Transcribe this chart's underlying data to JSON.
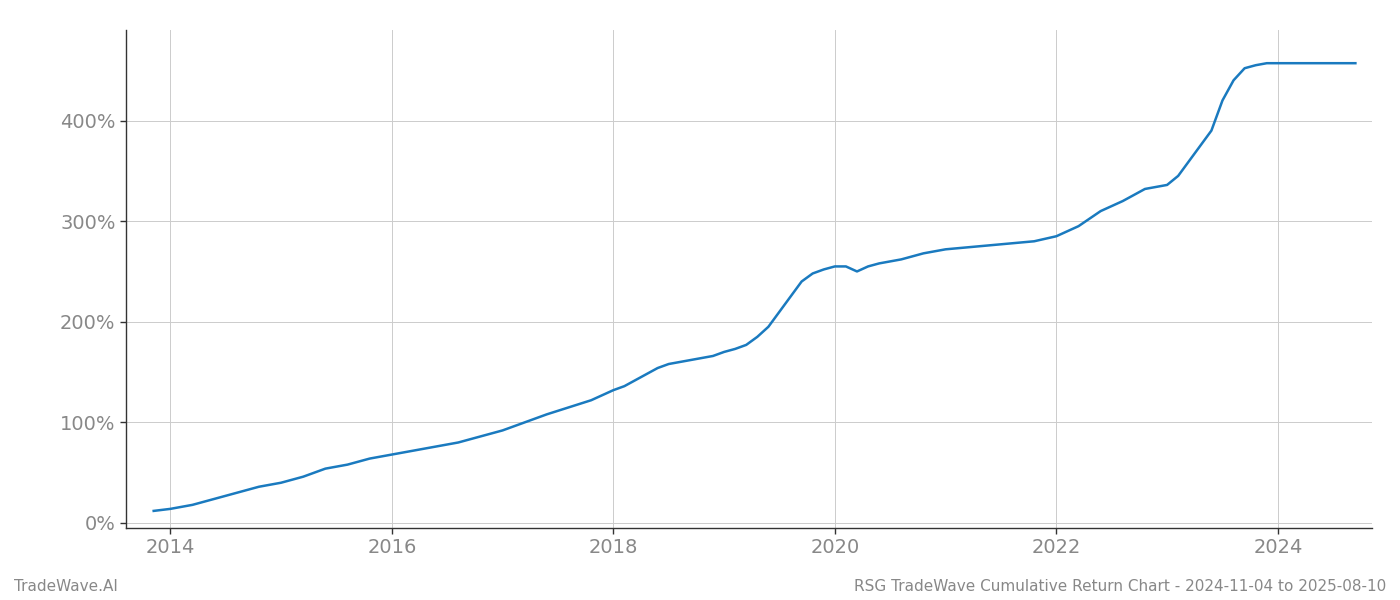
{
  "title": "RSG TradeWave Cumulative Return Chart - 2024-11-04 to 2025-08-10",
  "watermark": "TradeWave.AI",
  "line_color": "#1a7abf",
  "line_width": 1.8,
  "background_color": "#ffffff",
  "grid_color": "#cccccc",
  "x_years": [
    2013.85,
    2014.0,
    2014.2,
    2014.4,
    2014.6,
    2014.8,
    2015.0,
    2015.2,
    2015.4,
    2015.6,
    2015.8,
    2016.0,
    2016.2,
    2016.4,
    2016.6,
    2016.8,
    2017.0,
    2017.2,
    2017.4,
    2017.6,
    2017.8,
    2018.0,
    2018.1,
    2018.2,
    2018.3,
    2018.4,
    2018.5,
    2018.6,
    2018.7,
    2018.8,
    2018.9,
    2019.0,
    2019.1,
    2019.2,
    2019.3,
    2019.4,
    2019.5,
    2019.6,
    2019.7,
    2019.8,
    2019.9,
    2020.0,
    2020.1,
    2020.2,
    2020.3,
    2020.4,
    2020.5,
    2020.6,
    2020.7,
    2020.8,
    2020.9,
    2021.0,
    2021.2,
    2021.4,
    2021.6,
    2021.8,
    2022.0,
    2022.2,
    2022.4,
    2022.6,
    2022.8,
    2023.0,
    2023.1,
    2023.2,
    2023.4,
    2023.5,
    2023.6,
    2023.7,
    2023.8,
    2023.9,
    2024.0,
    2024.1,
    2024.2,
    2024.3,
    2024.4,
    2024.5,
    2024.6,
    2024.7
  ],
  "y_values": [
    12,
    14,
    18,
    24,
    30,
    36,
    40,
    46,
    54,
    58,
    64,
    68,
    72,
    76,
    80,
    86,
    92,
    100,
    108,
    115,
    122,
    132,
    136,
    142,
    148,
    154,
    158,
    160,
    162,
    164,
    166,
    170,
    173,
    177,
    185,
    195,
    210,
    225,
    240,
    248,
    252,
    255,
    255,
    250,
    255,
    258,
    260,
    262,
    265,
    268,
    270,
    272,
    274,
    276,
    278,
    280,
    285,
    295,
    310,
    320,
    332,
    336,
    345,
    360,
    390,
    420,
    440,
    452,
    455,
    457,
    457,
    457,
    457,
    457,
    457,
    457,
    457,
    457
  ],
  "xlim": [
    2013.6,
    2024.85
  ],
  "ylim": [
    -5,
    490
  ],
  "yticks": [
    0,
    100,
    200,
    300,
    400
  ],
  "xticks": [
    2014,
    2016,
    2018,
    2020,
    2022,
    2024
  ],
  "tick_color": "#888888",
  "tick_fontsize": 14,
  "footer_fontsize": 11,
  "title_fontsize": 11
}
